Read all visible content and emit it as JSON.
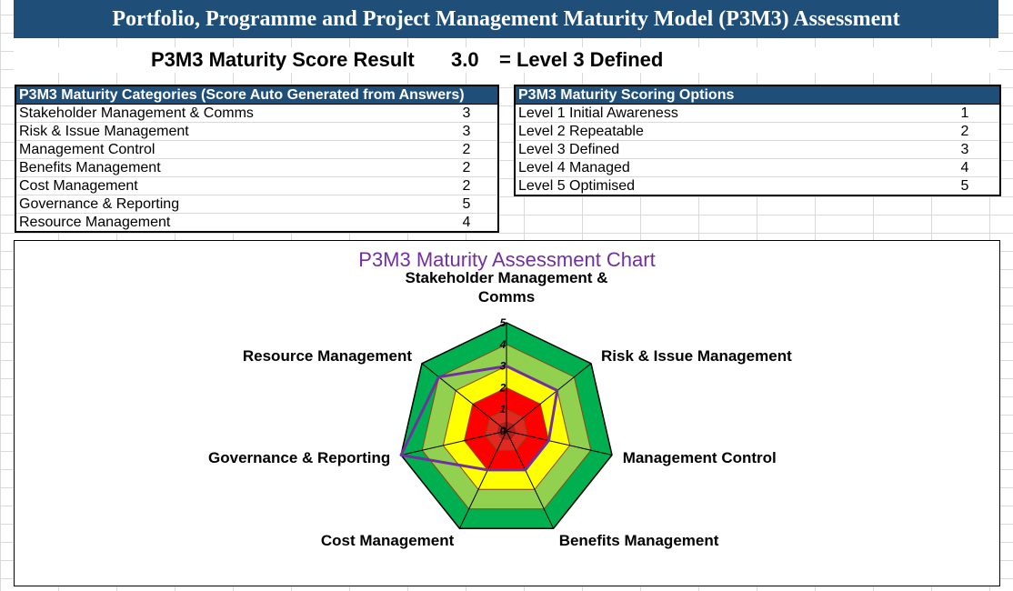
{
  "title": "Portfolio, Programme and Project Management Maturity Model (P3M3) Assessment",
  "score": {
    "label": "P3M3 Maturity Score Result",
    "value": "3.0",
    "result": "= Level 3 Defined"
  },
  "categories_table": {
    "header": "P3M3 Maturity Categories (Score Auto Generated from Answers)",
    "rows": [
      {
        "name": "Stakeholder Management & Comms",
        "score": "3"
      },
      {
        "name": "Risk & Issue Management",
        "score": "3"
      },
      {
        "name": "Management Control",
        "score": "2"
      },
      {
        "name": "Benefits Management",
        "score": "2"
      },
      {
        "name": "Cost Management",
        "score": "2"
      },
      {
        "name": "Governance & Reporting",
        "score": "5"
      },
      {
        "name": "Resource Management",
        "score": "4"
      }
    ]
  },
  "scoring_table": {
    "header": "P3M3 Maturity Scoring Options",
    "rows": [
      {
        "name": "Level 1 Initial Awareness",
        "score": "1"
      },
      {
        "name": "Level 2 Repeatable",
        "score": "2"
      },
      {
        "name": "Level 3 Defined",
        "score": "3"
      },
      {
        "name": "Level 4 Managed",
        "score": "4"
      },
      {
        "name": "Level 5 Optimised",
        "score": "5"
      }
    ]
  },
  "chart_data": {
    "type": "radar",
    "title": "P3M3 Maturity Assessment Chart",
    "axes": [
      [
        "Stakeholder Management &",
        "Comms"
      ],
      [
        "Risk & Issue Management"
      ],
      [
        "Management Control"
      ],
      [
        "Benefits Management"
      ],
      [
        "Cost Management"
      ],
      [
        "Governance & Reporting"
      ],
      [
        "Resource Management"
      ]
    ],
    "values": [
      3,
      3,
      2,
      2,
      2,
      5,
      4
    ],
    "range": [
      0,
      5
    ],
    "tick_labels": [
      "0",
      "1",
      "2",
      "3",
      "4",
      "5"
    ],
    "band_colors": [
      "#8b1a1a",
      "#e0291f",
      "#ff0000",
      "#ffff00",
      "#92d050",
      "#00b050"
    ],
    "series_color": "#7030a0"
  }
}
